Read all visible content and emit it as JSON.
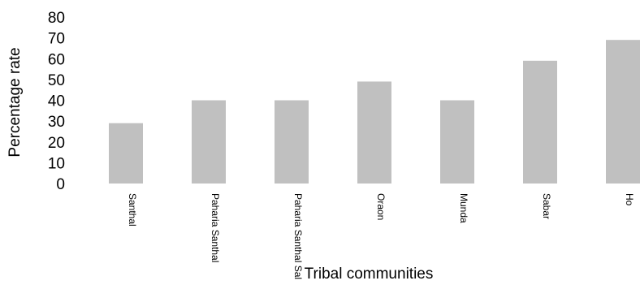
{
  "chart_data": {
    "type": "bar",
    "title": "",
    "xlabel": "Tribal communities",
    "ylabel": "Percentage rate",
    "ylim": [
      0,
      80
    ],
    "yticks": [
      0,
      10,
      20,
      30,
      40,
      50,
      60,
      70,
      80
    ],
    "grid": false,
    "legend": "none",
    "categories": [
      "Santhal",
      "Paharia Santhal",
      "Paharia Santhal Sal",
      "Oraon",
      "Munda",
      "Sabar",
      "Ho"
    ],
    "values": [
      29,
      40,
      40,
      49,
      40,
      59,
      69
    ],
    "bar_color": "#c0c0c0"
  }
}
